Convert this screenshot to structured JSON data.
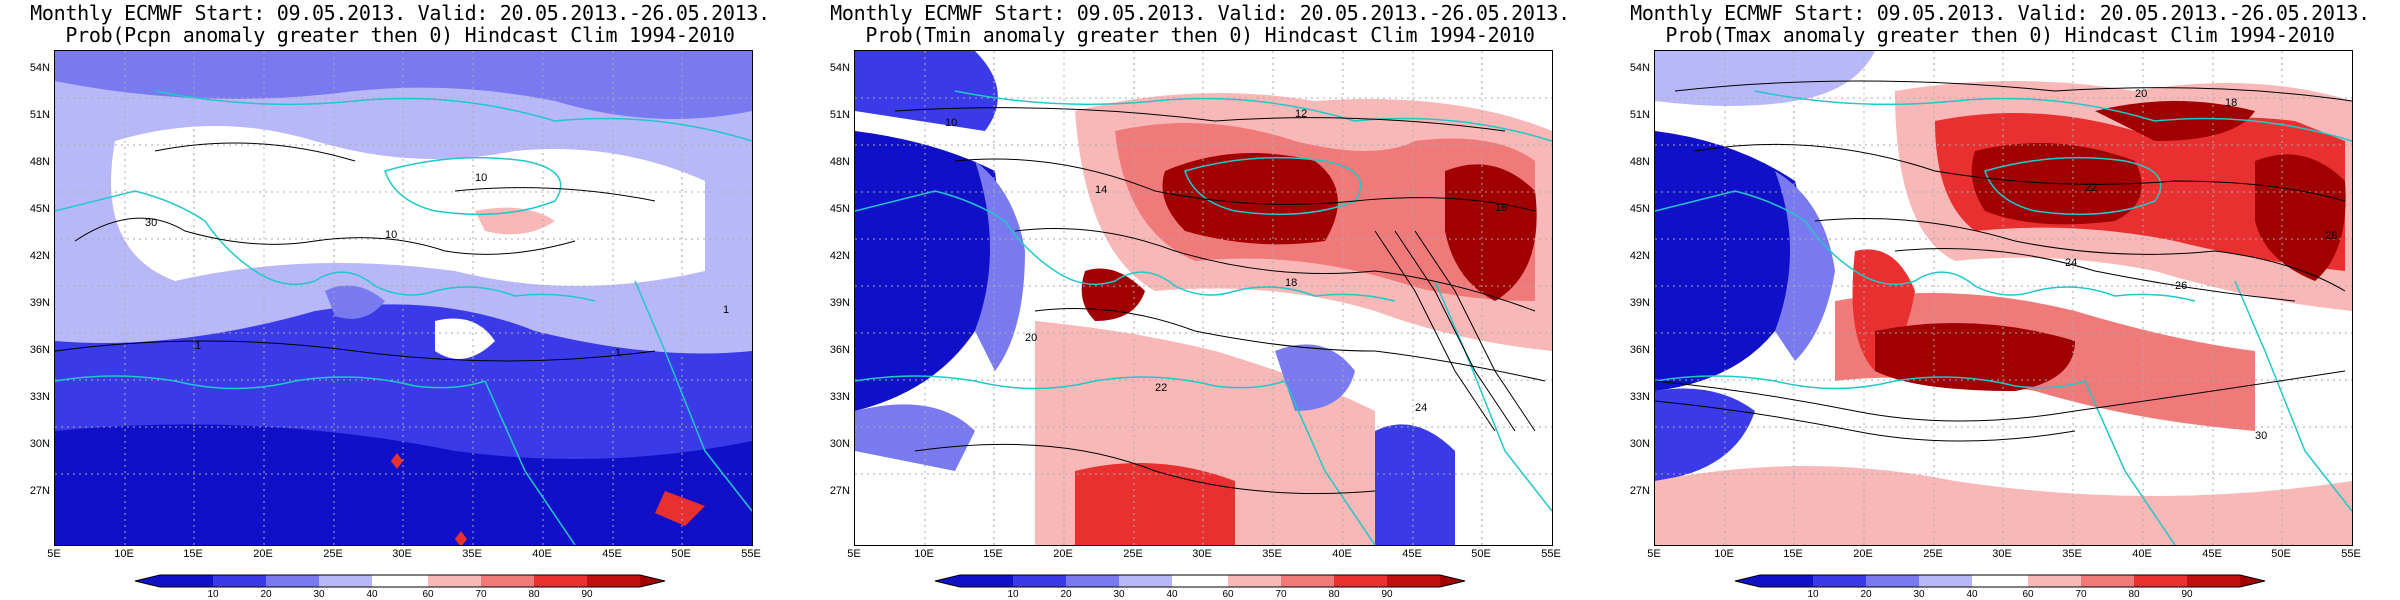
{
  "colors": {
    "p10": "#1010c8",
    "p20": "#3a3ae8",
    "p30": "#7a7af0",
    "p40": "#b8b8f8",
    "p50": "#ffffff",
    "p60": "#f8b8b8",
    "p70": "#f07a7a",
    "p80": "#e83030",
    "p90": "#a00000",
    "coast": "#20c8c8",
    "contour": "#000000",
    "grid": "#aaaaaa"
  },
  "axes": {
    "lat_labels": [
      "54N",
      "51N",
      "48N",
      "45N",
      "42N",
      "39N",
      "36N",
      "33N",
      "30N",
      "27N"
    ],
    "lon_labels": [
      "5E",
      "10E",
      "15E",
      "20E",
      "25E",
      "30E",
      "35E",
      "40E",
      "45E",
      "50E",
      "55E"
    ]
  },
  "colorbar": {
    "labels": [
      "10",
      "20",
      "30",
      "40",
      "60",
      "70",
      "80",
      "90"
    ]
  },
  "panels": [
    {
      "title_line1": "Monthly ECMWF Start: 09.05.2013. Valid: 20.05.2013.-26.05.2013.",
      "title_line2": "Prob(Pcpn anomaly greater then 0) Hindcast Clim 1994-2010",
      "contour_labels": [
        "30",
        "10",
        "1",
        "10",
        "1",
        "1"
      ]
    },
    {
      "title_line1": "Monthly ECMWF Start: 09.05.2013. Valid: 20.05.2013.-26.05.2013.",
      "title_line2": "Prob(Tmin anomaly greater then 0) Hindcast Clim 1994-2010",
      "contour_labels": [
        "10",
        "12",
        "14",
        "16",
        "18",
        "20",
        "22",
        "24"
      ]
    },
    {
      "title_line1": "Monthly ECMWF Start: 09.05.2013. Valid: 20.05.2013.-26.05.2013.",
      "title_line2": "Prob(Tmax anomaly greater then 0) Hindcast Clim 1994-2010",
      "contour_labels": [
        "18",
        "20",
        "22",
        "24",
        "26",
        "28",
        "30"
      ]
    }
  ]
}
